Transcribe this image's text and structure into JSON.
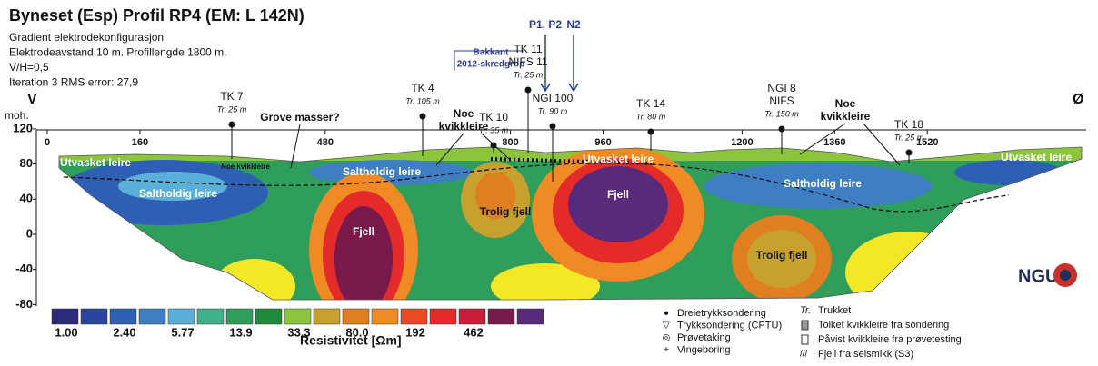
{
  "header": {
    "title": "Byneset (Esp) Profil RP4 (EM: L 142N)",
    "info": [
      "Gradient elektrodekonfigurasjon",
      "Elektrodeavstand 10 m. Profillengde 1800 m.",
      "V/H=0,5",
      "Iteration 3 RMS error: 27,9"
    ]
  },
  "orientation": {
    "left": "V",
    "right": "Ø"
  },
  "y_axis": {
    "label": "moh.",
    "ticks": [
      120,
      80,
      40,
      0,
      -40,
      -80
    ]
  },
  "x_axis": {
    "ticks": [
      0,
      160,
      480,
      800,
      960,
      1200,
      1360,
      1520
    ]
  },
  "markers": {
    "top": [
      "P1, P2",
      "N2"
    ],
    "scar": [
      "Bakkant",
      "2012-skredgrop"
    ]
  },
  "boreholes": [
    {
      "lines": [
        "TK 7",
        "Tr. 25 m"
      ]
    },
    {
      "lines": [
        "TK 4",
        "Tr. 105 m"
      ]
    },
    {
      "lines": [
        "TK 10",
        "Tr. 35 m"
      ]
    },
    {
      "lines": [
        "TK 11",
        "NIFS 11",
        "Tr. 25 m"
      ]
    },
    {
      "lines": [
        "NGI 100",
        "Tr. 90 m"
      ]
    },
    {
      "lines": [
        "TK 14",
        "Tr. 80 m"
      ]
    },
    {
      "lines": [
        "NGI 8",
        "NIFS",
        "Tr. 150 m"
      ]
    },
    {
      "lines": [
        "TK 18",
        "Tr. 25 m"
      ]
    }
  ],
  "annotations": [
    "Grove masser?",
    "Noe kvikkleire",
    "Noe kvikkleire"
  ],
  "section_labels": [
    "Utvasket leire",
    "Noe kvikkleire",
    "Saltholdig leire",
    "Saltholdig leire",
    "Utvasket leire",
    "Saltholdig leire",
    "Utvasket leire",
    "Fjell",
    "Fjell",
    "Trolig fjell",
    "Trolig fjell"
  ],
  "colorbar": {
    "title": "Resistivitet [Ωm]",
    "labels": [
      "1.00",
      "2.40",
      "5.77",
      "13.9",
      "33.3",
      "80.0",
      "192",
      "462"
    ],
    "colors": [
      "#2b2a7e",
      "#2a45a0",
      "#2f5fb5",
      "#3e7fc4",
      "#5ab0d8",
      "#3fb28c",
      "#2e9e5a",
      "#1f8a3c",
      "#8cc43c",
      "#c8a030",
      "#e07e22",
      "#f08a24",
      "#e84a22",
      "#e52a2a",
      "#c81e3a",
      "#7a1a4a",
      "#5a2a7a"
    ]
  },
  "legend": {
    "symbols": [
      "Dreietrykksondering",
      "Trykksondering (CPTU)",
      "Prøvetaking",
      "Vingeboring"
    ],
    "notes": [
      {
        "abbr": "Tr.",
        "text": "Trukket"
      },
      {
        "text": "Tolket kvikkleire fra sondering"
      },
      {
        "text": "Påvist kvikkleire fra prøvetesting"
      },
      {
        "text": "Fjell fra seismikk (S3)"
      }
    ]
  },
  "logo": "NGU"
}
